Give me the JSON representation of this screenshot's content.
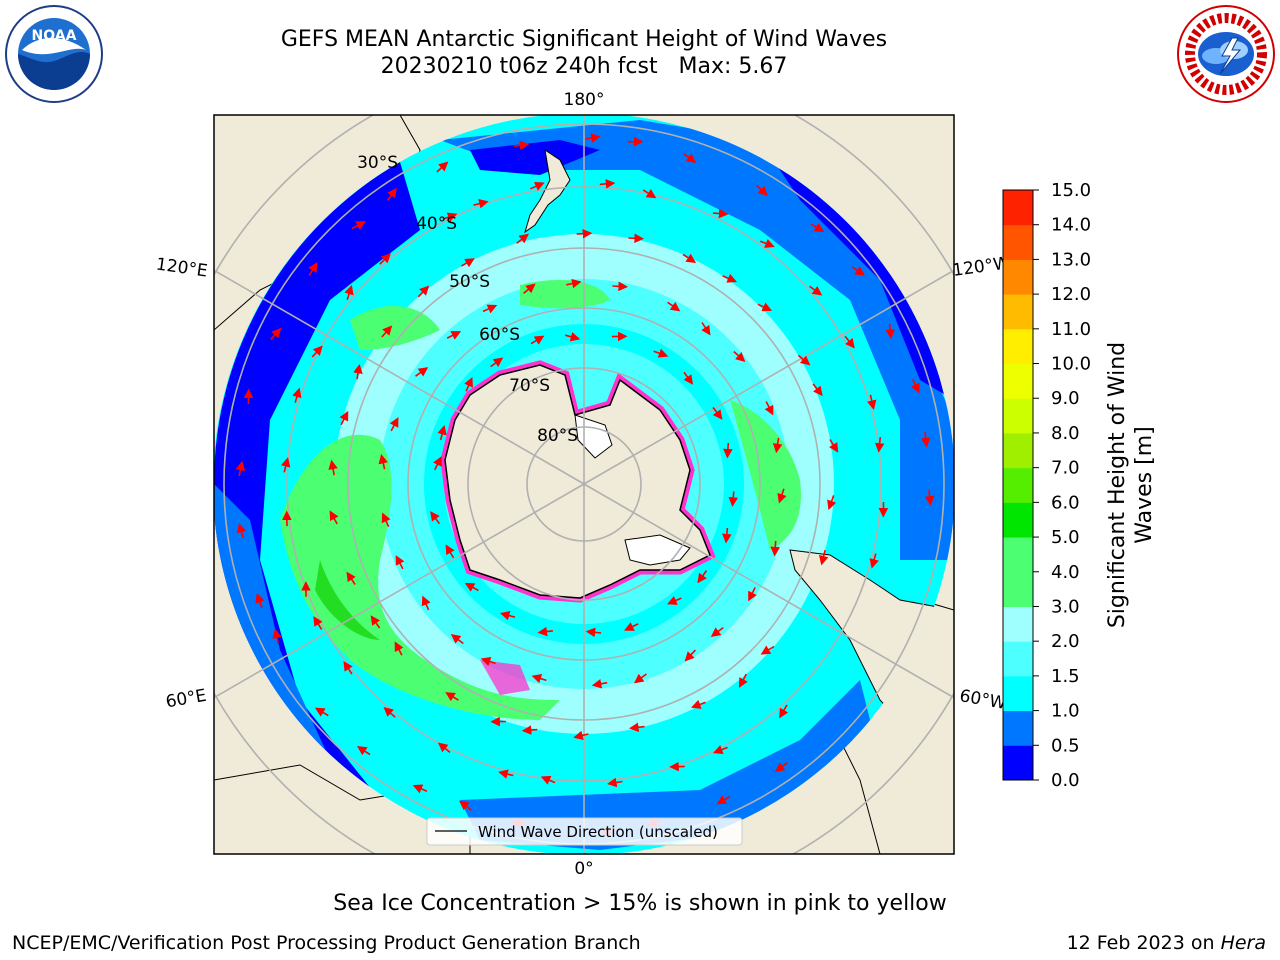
{
  "header": {
    "title_line1": "GEFS MEAN Antarctic Significant Height of Wind Waves",
    "title_line2": "20230210 t06z 240h fcst   Max: 5.67"
  },
  "logos": {
    "noaa": "NOAA",
    "noaa_ring_text": "NATIONAL OCEANIC AND ATMOSPHERIC ADMINISTRATION",
    "noaa_ring_text_bottom": "U.S. DEPARTMENT OF COMMERCE",
    "nws_ring_text": "NATIONAL WEATHER SERVICE"
  },
  "map": {
    "projection": "South Polar Stereographic",
    "longitude_labels": {
      "top": "180°",
      "bottom": "0°",
      "left_upper": "120°E",
      "left_lower": "60°E",
      "right_upper": "120°W",
      "right_lower": "60°W"
    },
    "latitude_labels": [
      "30°S",
      "40°S",
      "50°S",
      "60°S",
      "70°S",
      "80°S"
    ],
    "legend_label": "Wind Wave Direction (unscaled)",
    "colors": {
      "land": "#efebd8",
      "deep_blue": "#0000ff",
      "blue": "#0077ff",
      "cyan": "#00ffff",
      "light_cyan": "#4dffff",
      "pale_cyan": "#9fffff",
      "green": "#4cff72",
      "dark_green": "#22dd22",
      "sea_ice_pink": "#ff33cc",
      "arrow_red": "#ff0000"
    }
  },
  "colorbar": {
    "title_line1": "Significant Height of Wind",
    "title_line2": "Waves [m]",
    "ticks": [
      "0.0",
      "0.5",
      "1.0",
      "1.5",
      "2.0",
      "3.0",
      "4.0",
      "5.0",
      "6.0",
      "7.0",
      "8.0",
      "9.0",
      "10.0",
      "11.0",
      "12.0",
      "13.0",
      "14.0",
      "15.0"
    ],
    "colors": [
      "#0000ff",
      "#0077ff",
      "#00ffff",
      "#4dffff",
      "#9fffff",
      "#4cff72",
      "#4cff72",
      "#00e600",
      "#55ee00",
      "#a0ee00",
      "#ccff00",
      "#eeff00",
      "#ffee00",
      "#ffbb00",
      "#ff8800",
      "#ff5500",
      "#ff2200",
      "#ff0000"
    ]
  },
  "captions": {
    "sea_ice": "Sea Ice Concentration > 15% is shown in pink to yellow"
  },
  "footer": {
    "left": "NCEP/EMC/Verification Post Processing Product Generation Branch",
    "right_prefix": "12 Feb 2023 on ",
    "right_host": "Hera"
  }
}
